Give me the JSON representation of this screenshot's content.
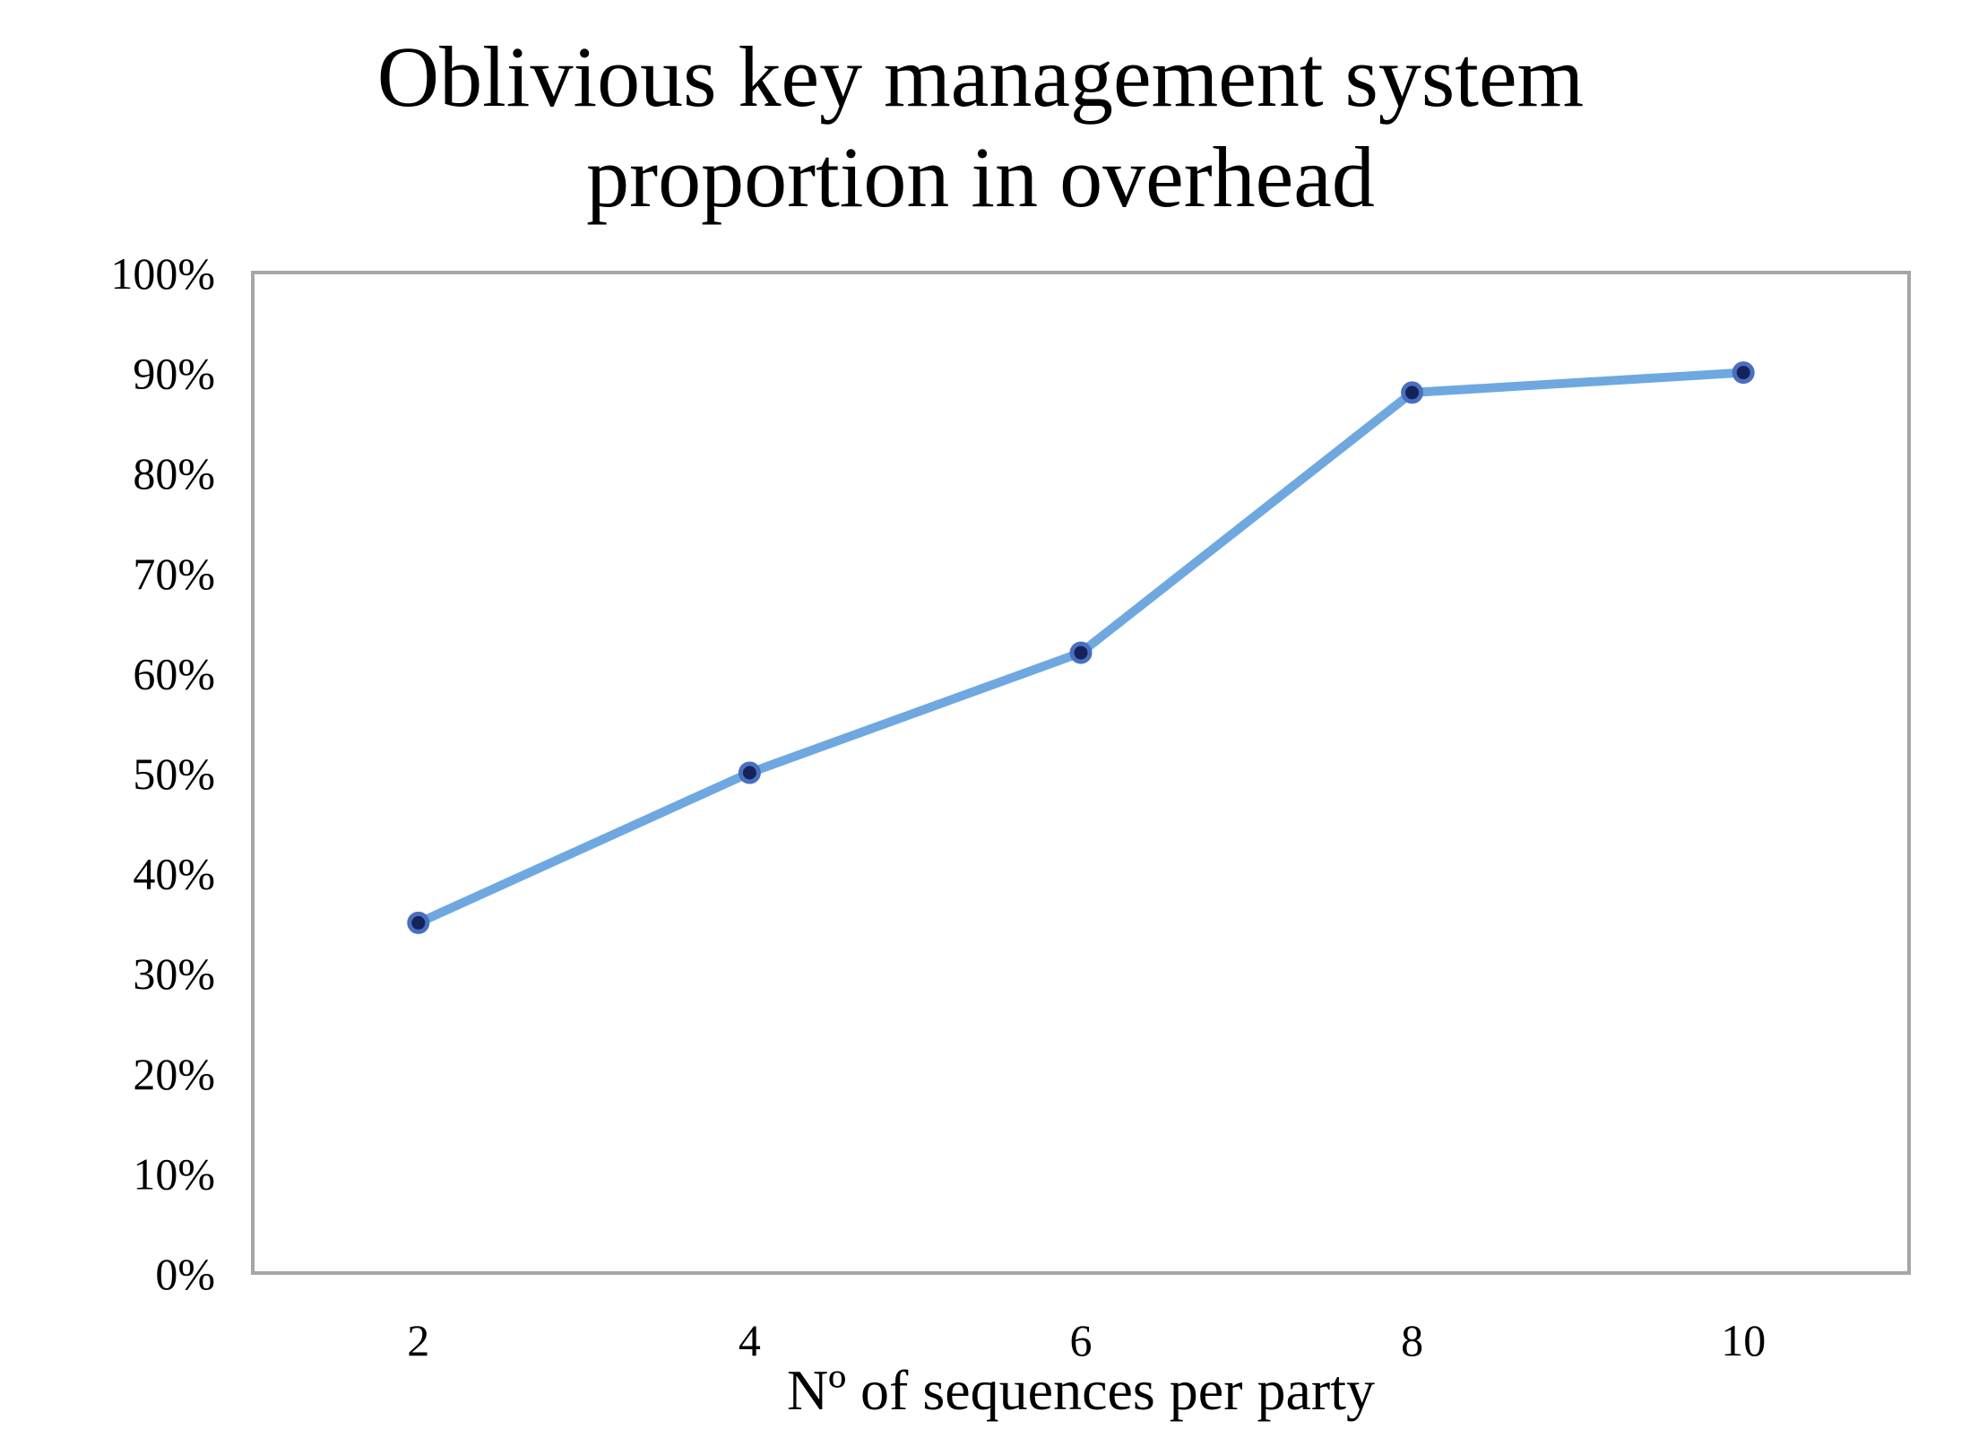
{
  "chart_data": {
    "type": "line",
    "title_lines": [
      "Oblivious key management system",
      "proportion in overhead"
    ],
    "xlabel": "Nº of sequences per party",
    "ylabel": "",
    "x": [
      2,
      4,
      6,
      8,
      10
    ],
    "x_tick_labels": [
      "2",
      "4",
      "6",
      "8",
      "10"
    ],
    "y_tick_values": [
      0,
      0.1,
      0.2,
      0.3,
      0.4,
      0.5,
      0.6,
      0.7,
      0.8,
      0.9,
      1.0
    ],
    "y_tick_labels": [
      "0%",
      "10%",
      "20%",
      "30%",
      "40%",
      "50%",
      "60%",
      "70%",
      "80%",
      "90%",
      "100%"
    ],
    "ylim": [
      0,
      1
    ],
    "grid": false,
    "legend": "none",
    "series": [
      {
        "values": [
          0.35,
          0.5,
          0.62,
          0.88,
          0.9
        ],
        "color": "#6fa8e0",
        "marker_fill": "#14235a",
        "marker_edge": "#4a6fbf"
      }
    ],
    "axis_frame_color": "#a6a6a6"
  }
}
